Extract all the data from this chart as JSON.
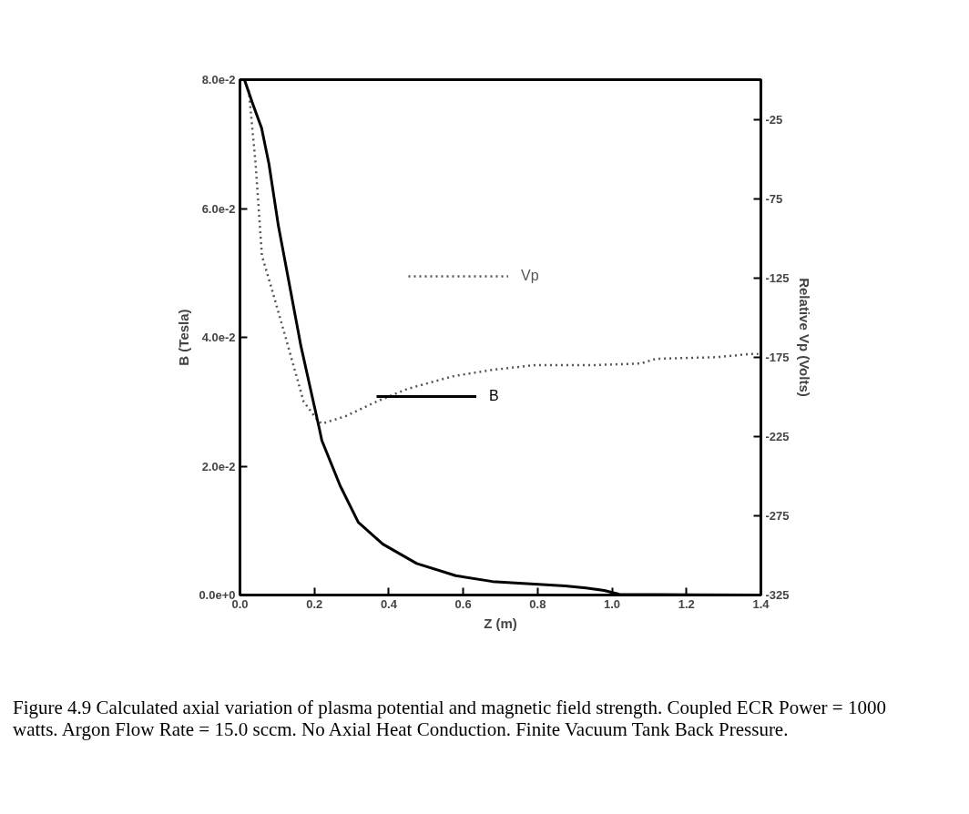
{
  "chart_data": {
    "type": "line",
    "xlabel": "Z (m)",
    "ylabel": "B (Tesla)",
    "y2label": "Relative Vp (Volts)",
    "xlim": [
      0,
      1.4
    ],
    "xticks": [
      {
        "value": 0,
        "label": "0.0"
      },
      {
        "value": 0.2,
        "label": "0.2"
      },
      {
        "value": 0.4,
        "label": "0.4"
      },
      {
        "value": 0.6,
        "label": "0.6"
      },
      {
        "value": 0.8,
        "label": "0.8"
      },
      {
        "value": 1.0,
        "label": "1.0"
      },
      {
        "value": 1.2,
        "label": "1.2"
      },
      {
        "value": 1.4,
        "label": "1.4"
      }
    ],
    "ylim": [
      0,
      0.08
    ],
    "yticks": [
      {
        "value": 0,
        "label": "0.0e+0"
      },
      {
        "value": 0.02,
        "label": "2.0e-2"
      },
      {
        "value": 0.04,
        "label": "4.0e-2"
      },
      {
        "value": 0.06,
        "label": "6.0e-2"
      },
      {
        "value": 0.08,
        "label": "8.0e-2"
      }
    ],
    "y2lim": [
      -325,
      0
    ],
    "y2ticks": [
      -325,
      -275,
      -225,
      -175,
      -125,
      -75,
      -25
    ],
    "grid": false,
    "legend": "center",
    "marker": "none",
    "series": [
      {
        "name": "Vp",
        "color": "#555555",
        "axis": "y2",
        "line_style": "dotted",
        "x": [
          0.012,
          0.024,
          0.042,
          0.059,
          0.083,
          0.122,
          0.171,
          0.206,
          0.22,
          0.286,
          0.367,
          0.45,
          0.573,
          0.678,
          0.793,
          0.954,
          1.077,
          1.118,
          1.282,
          1.371,
          1.393
        ],
        "values": [
          0,
          -7.5,
          -53,
          -111,
          -130,
          -162,
          -203,
          -214,
          -217,
          -212,
          -203,
          -195,
          -187,
          -183,
          -180,
          -180,
          -179,
          -176,
          -175,
          -173,
          -173
        ]
      },
      {
        "name": "B",
        "color": "#000000",
        "line_style": "solid",
        "x": [
          0.012,
          0.034,
          0.058,
          0.078,
          0.103,
          0.115,
          0.164,
          0.213,
          0.22,
          0.269,
          0.318,
          0.384,
          0.475,
          0.58,
          0.678,
          0.874,
          0.93,
          0.979,
          1.02,
          1.4
        ],
        "values": [
          0.08,
          0.0763,
          0.0725,
          0.0669,
          0.0574,
          0.0537,
          0.0386,
          0.0259,
          0.024,
          0.017,
          0.0113,
          0.0079,
          0.0049,
          0.003,
          0.0021,
          0.0014,
          0.0011,
          0.0007,
          0.0001,
          0.0
        ]
      }
    ],
    "annotations": [
      "Figure 4.9  Calculated axial variation of plasma potential and magnetic field strength.  Coupled ECR Power = 1000 watts.  Argon Flow Rate = 15.0 sccm.  No Axial Heat Conduction.  Finite Vacuum Tank Back Pressure."
    ]
  }
}
